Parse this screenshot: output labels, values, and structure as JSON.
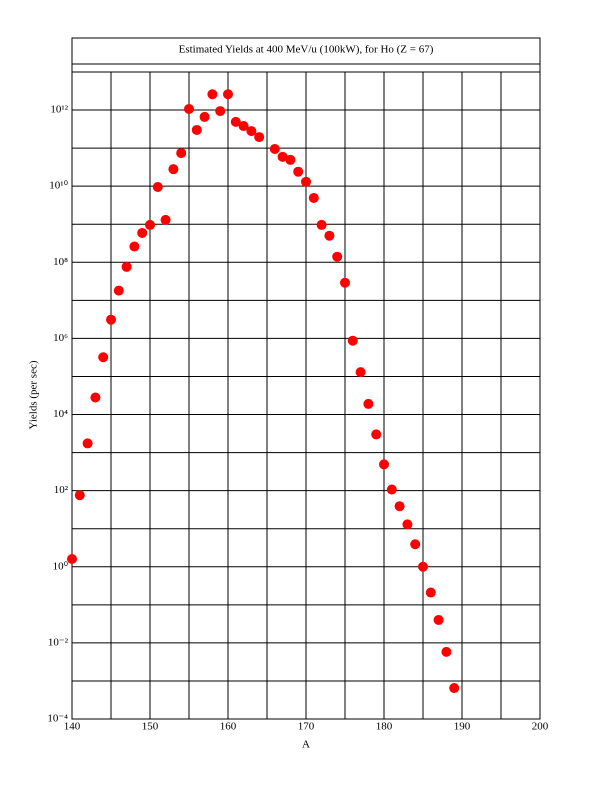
{
  "chart_data": {
    "type": "scatter",
    "title": "Estimated Yields at 400 MeV/u (100kW), for Ho (Z = 67)",
    "xlabel": "A",
    "ylabel": "Yields (per sec)",
    "x": [
      140,
      141,
      142,
      143,
      144,
      145,
      146,
      147,
      148,
      149,
      150,
      151,
      152,
      153,
      154,
      155,
      156,
      157,
      158,
      159,
      160,
      161,
      162,
      163,
      164,
      166,
      167,
      168,
      169,
      170,
      171,
      172,
      173,
      174,
      175,
      176,
      177,
      178,
      179,
      180,
      181,
      182,
      183,
      184,
      185,
      186,
      187,
      188,
      189
    ],
    "values": [
      1.6,
      76,
      1740,
      28000,
      320000,
      3100000,
      18000000,
      76000000,
      260000000,
      590000000,
      960000000,
      9500000000,
      1300000000,
      28000000000,
      74000000000,
      1070000000000,
      300000000000,
      660000000000,
      2600000000000,
      940000000000,
      2600000000000,
      490000000000,
      380000000000,
      280000000000,
      195000000000,
      95000000000,
      59000000000,
      49000000000,
      24000000000,
      13000000000,
      4900000000,
      960000000,
      500000000,
      140000000,
      29000000,
      870000,
      130000,
      19000,
      3000,
      490,
      107,
      39,
      13,
      3.9,
      1.0,
      0.21,
      0.04,
      0.0058,
      0.00065
    ],
    "color": "#ff0000",
    "xlim": [
      140,
      200
    ],
    "xticks": [
      140,
      150,
      160,
      170,
      180,
      190,
      200
    ],
    "ylim": [
      0.0001,
      10000000000000
    ],
    "ylog": true,
    "yticks": [
      {
        "value": 0.0001,
        "label": "10⁻⁴"
      },
      {
        "value": 0.01,
        "label": "10⁻²"
      },
      {
        "value": 1,
        "label": "10⁰"
      },
      {
        "value": 100,
        "label": "10²"
      },
      {
        "value": 10000,
        "label": "10⁴"
      },
      {
        "value": 1000000,
        "label": "10⁶"
      },
      {
        "value": 100000000,
        "label": "10⁸"
      },
      {
        "value": 10000000000,
        "label": "10¹⁰"
      },
      {
        "value": 1000000000000,
        "label": "10¹²"
      }
    ],
    "grid": true,
    "minor_grid": true
  }
}
